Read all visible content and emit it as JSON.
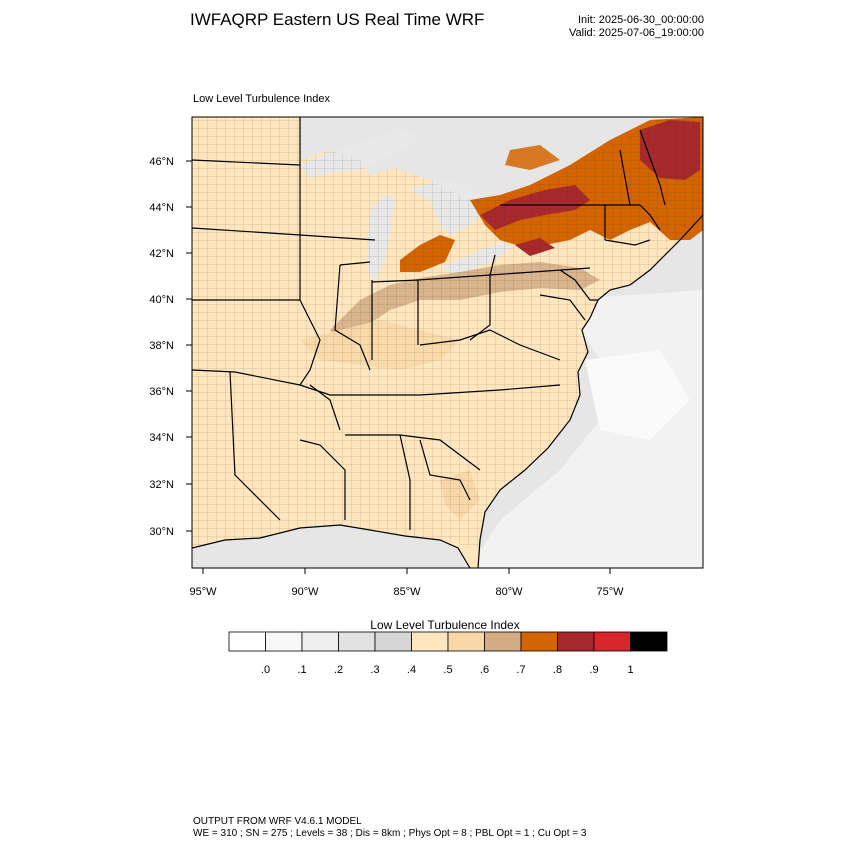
{
  "header": {
    "title": "IWFAQRP Eastern US Real Time WRF",
    "init": "Init: 2025-06-30_00:00:00",
    "valid": "Valid: 2025-07-06_19:00:00"
  },
  "map": {
    "title": "Low Level Turbulence Index",
    "lat_labels": [
      "46°N",
      "44°N",
      "42°N",
      "40°N",
      "38°N",
      "36°N",
      "34°N",
      "32°N",
      "30°N"
    ],
    "lon_labels": [
      "95°W",
      "90°W",
      "85°W",
      "80°W",
      "75°W"
    ]
  },
  "colorbar": {
    "title": "Low Level Turbulence Index",
    "colors": [
      "#ffffff",
      "#f8f8f8",
      "#efefef",
      "#e2e2e2",
      "#d6d6d6",
      "#ffe6bf",
      "#f8d8a8",
      "#d2ac85",
      "#d36400",
      "#a8292b",
      "#d9262c",
      "#000000"
    ],
    "labels": [
      ".0",
      ".1",
      ".2",
      ".3",
      ".4",
      ".5",
      ".6",
      ".7",
      ".8",
      ".9",
      "1"
    ]
  },
  "footer": {
    "line1": "OUTPUT FROM WRF V4.6.1 MODEL",
    "line2": "WE = 310 ; SN = 275 ; Levels = 38 ; Dis = 8km ; Phys Opt = 8 ; PBL Opt = 1 ; Cu Opt = 3"
  }
}
